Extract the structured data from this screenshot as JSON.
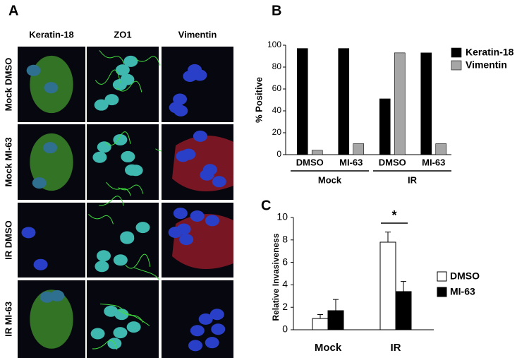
{
  "panel_a": {
    "label": "A",
    "columns": [
      "Keratin-18",
      "ZO1",
      "Vimentin"
    ],
    "rows": [
      "Mock DMSO",
      "Mock MI-63",
      "IR DMSO",
      "IR MI-63"
    ]
  },
  "chart_data": [
    {
      "type": "bar",
      "label": "B",
      "ylabel": "% Positive",
      "categories": [
        "DMSO",
        "MI-63",
        "DMSO",
        "MI-63"
      ],
      "group_labels": [
        "Mock",
        "IR"
      ],
      "series": [
        {
          "name": "Keratin-18",
          "color": "#000000",
          "values": [
            97,
            97,
            51,
            93
          ]
        },
        {
          "name": "Vimentin",
          "color": "#a6a6a6",
          "values": [
            4,
            10,
            93,
            10
          ]
        }
      ],
      "ylim": [
        0,
        100
      ],
      "yticks": [
        0,
        20,
        40,
        60,
        80,
        100
      ],
      "legend": "right"
    },
    {
      "type": "errorbar",
      "label": "C",
      "ylabel": "Relative Invasiveness",
      "categories": [
        "Mock",
        "IR"
      ],
      "annotation": "*",
      "series": [
        {
          "name": "DMSO",
          "color": "#ffffff",
          "values": [
            1,
            7.8
          ],
          "errors": [
            0.35,
            0.9
          ]
        },
        {
          "name": "MI-63",
          "color": "#000000",
          "values": [
            1.7,
            3.4
          ],
          "errors": [
            1,
            0.9
          ]
        }
      ],
      "ylim": [
        0,
        10
      ],
      "yticks": [
        0,
        2,
        4,
        6,
        8,
        10
      ],
      "legend": "right"
    }
  ]
}
